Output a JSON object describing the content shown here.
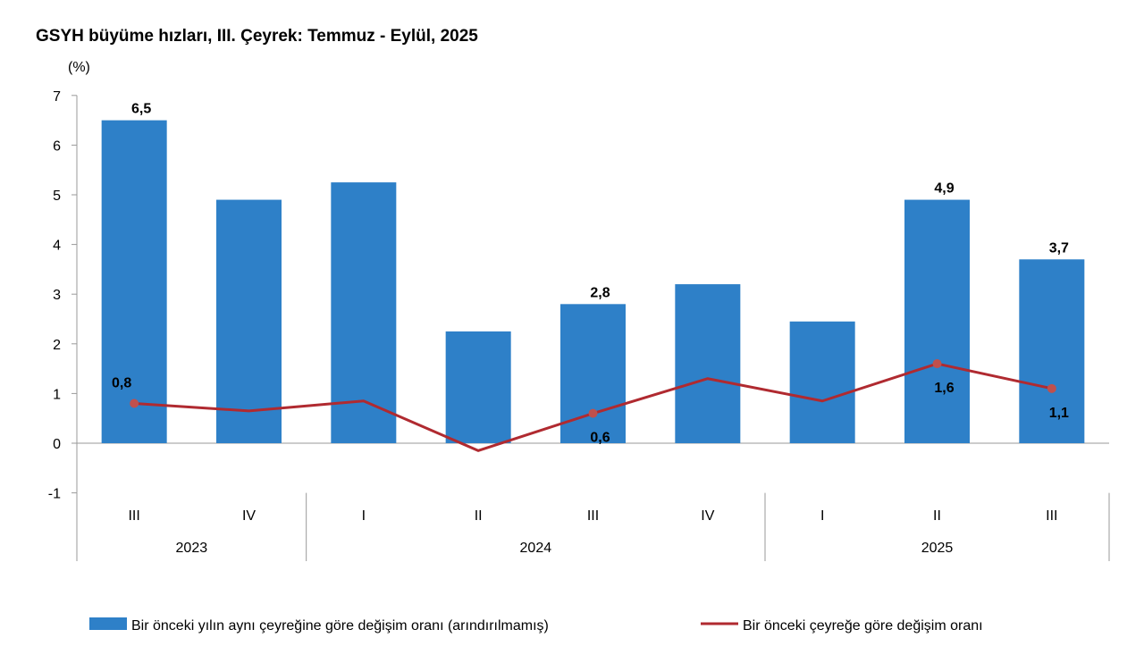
{
  "chart_data": {
    "type": "bar",
    "title": "GSYH büyüme hızları, III. Çeyrek: Temmuz - Eylül, 2025",
    "ylabel": "(%)",
    "ylim": [
      -1,
      7
    ],
    "yticks": [
      "7",
      "6",
      "5",
      "4",
      "3",
      "2",
      "1",
      "0",
      "-1"
    ],
    "ytick_values": [
      7,
      6,
      5,
      4,
      3,
      2,
      1,
      0,
      -1
    ],
    "categories": [
      "III",
      "IV",
      "I",
      "II",
      "III",
      "IV",
      "I",
      "II",
      "III"
    ],
    "years": [
      {
        "label": "2023",
        "span": [
          0,
          1
        ]
      },
      {
        "label": "2024",
        "span": [
          2,
          5
        ]
      },
      {
        "label": "2025",
        "span": [
          6,
          8
        ]
      }
    ],
    "series": [
      {
        "name": "Bir önceki yılın aynı çeyreğine göre değişim oranı (arındırılmamış)",
        "type": "bar",
        "color": "#2E80C8",
        "values": [
          6.5,
          4.9,
          5.25,
          2.25,
          2.8,
          3.2,
          2.45,
          4.9,
          3.7
        ],
        "labels": [
          "6,5",
          "",
          "",
          "",
          "2,8",
          "",
          "",
          "4,9",
          "3,7"
        ]
      },
      {
        "name": "Bir önceki çeyreğe göre değişim oranı",
        "type": "line",
        "color": "#B02A30",
        "values": [
          0.8,
          0.65,
          0.85,
          -0.15,
          0.6,
          1.3,
          0.85,
          1.6,
          1.1
        ],
        "labels": [
          "0,8",
          "",
          "",
          "",
          "0,6",
          "",
          "",
          "1,6",
          "1,1"
        ],
        "label_pos": [
          "above",
          "",
          "",
          "",
          "below",
          "",
          "",
          "below",
          "below"
        ]
      }
    ],
    "legend_position": "bottom",
    "grid": false
  }
}
